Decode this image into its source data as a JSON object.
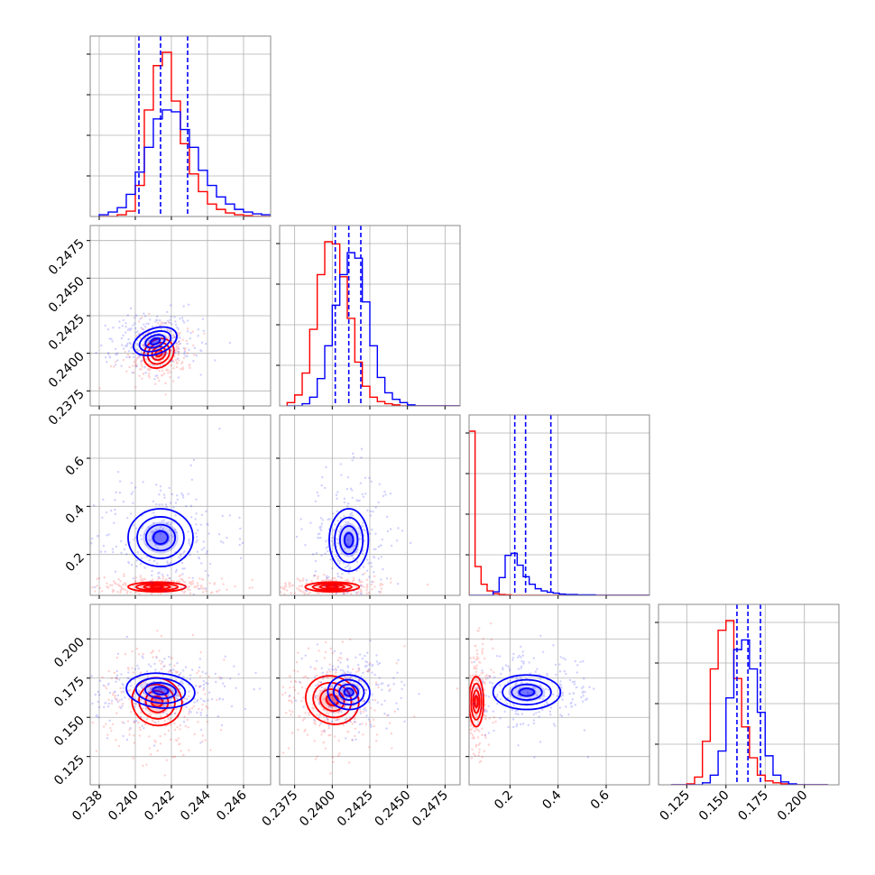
{
  "chart_data": {
    "type": "corner",
    "grid": true,
    "legend": "none",
    "colors": {
      "series_a": "#0000ff",
      "series_b": "#ff0000",
      "grid": "#b0b0b0",
      "frame": "#888888"
    },
    "parameters": [
      {
        "range": [
          0.2375,
          0.2475
        ],
        "xticks": [
          "0.238",
          "0.240",
          "0.242",
          "0.244",
          "0.246"
        ],
        "yticks": []
      },
      {
        "range": [
          0.2365,
          0.2485
        ],
        "xticks": [
          "0.2375",
          "0.2400",
          "0.2425",
          "0.2450",
          "0.2475"
        ],
        "yticks": [
          "0.2375",
          "0.2400",
          "0.2425",
          "0.2450",
          "0.2475"
        ]
      },
      {
        "range": [
          0.03,
          0.78
        ],
        "xticks": [
          "0.2",
          "0.4",
          "0.6"
        ],
        "yticks": [
          "0.2",
          "0.4",
          "0.6"
        ]
      },
      {
        "range": [
          0.107,
          0.222
        ],
        "xticks": [
          "0.125",
          "0.150",
          "0.175",
          "0.200"
        ],
        "yticks": [
          "0.125",
          "0.150",
          "0.175",
          "0.200"
        ]
      }
    ],
    "quantiles_series_a": [
      [
        0.2402,
        0.2414,
        0.2429
      ],
      [
        0.2402,
        0.2411,
        0.2419
      ],
      [
        0.22,
        0.265,
        0.37
      ],
      [
        0.157,
        0.164,
        0.172
      ]
    ],
    "histograms": [
      {
        "edges_start": 0.238,
        "bin_width": 0.0005,
        "series_a": [
          2,
          5,
          10,
          25,
          50,
          78,
          110,
          120,
          118,
          98,
          78,
          52,
          35,
          22,
          14,
          8,
          5,
          3,
          2,
          1,
          0
        ],
        "series_b": [
          0,
          0,
          2,
          6,
          35,
          120,
          170,
          185,
          130,
          82,
          48,
          28,
          14,
          8,
          4,
          2,
          1,
          0,
          0,
          0,
          0
        ]
      },
      {
        "edges_start": 0.237,
        "bin_width": 0.0005,
        "series_a": [
          0,
          0,
          2,
          8,
          25,
          55,
          92,
          120,
          140,
          135,
          95,
          55,
          26,
          12,
          6,
          3,
          1,
          0,
          0,
          0,
          0,
          0,
          0
        ],
        "series_b": [
          3,
          10,
          30,
          70,
          120,
          150,
          148,
          118,
          80,
          40,
          18,
          8,
          4,
          2,
          1,
          0,
          0,
          0,
          0,
          0,
          0,
          0,
          0
        ]
      },
      {
        "edges_start": 0.03,
        "bin_width": 0.025,
        "series_a": [
          0,
          0,
          0,
          0,
          8,
          40,
          90,
          95,
          68,
          42,
          25,
          15,
          10,
          7,
          5,
          3,
          2,
          2,
          1,
          1,
          1,
          0,
          0,
          0,
          0,
          0,
          0,
          0,
          0,
          0
        ],
        "series_b": [
          370,
          65,
          25,
          10,
          4,
          2,
          1,
          0,
          0,
          0,
          0,
          0,
          0,
          0,
          0,
          0,
          0,
          0,
          0,
          0,
          0,
          0,
          0,
          0,
          0,
          0,
          0,
          0,
          0,
          0
        ]
      },
      {
        "edges_start": 0.115,
        "bin_width": 0.005,
        "series_a": [
          0,
          0,
          0,
          0,
          2,
          10,
          35,
          90,
          140,
          150,
          120,
          75,
          30,
          10,
          3,
          1,
          0,
          0,
          0,
          0
        ],
        "series_b": [
          0,
          0,
          1,
          8,
          45,
          120,
          160,
          170,
          110,
          60,
          28,
          10,
          4,
          2,
          1,
          0,
          0,
          0,
          0,
          0
        ]
      }
    ],
    "panels_2d": [
      {
        "row": 1,
        "col": 0,
        "series_a": {
          "center": [
            0.2411,
            0.2408
          ],
          "rx": 0.00125,
          "ry": 0.00085,
          "angle": 20
        },
        "series_b": {
          "center": [
            0.2413,
            0.24
          ],
          "rx": 0.0009,
          "ry": 0.0009,
          "angle": 42
        }
      },
      {
        "row": 2,
        "col": 0,
        "series_a": {
          "center": [
            0.2414,
            0.27
          ],
          "rx": 0.0018,
          "ry": 0.12,
          "angle": 0
        },
        "series_b": {
          "center": [
            0.2412,
            0.065
          ],
          "rx": 0.0016,
          "ry": 0.02,
          "angle": 0
        }
      },
      {
        "row": 2,
        "col": 1,
        "series_a": {
          "center": [
            0.2411,
            0.26
          ],
          "rx": 0.0013,
          "ry": 0.13,
          "angle": 0
        },
        "series_b": {
          "center": [
            0.24,
            0.065
          ],
          "rx": 0.0018,
          "ry": 0.02,
          "angle": 0
        }
      },
      {
        "row": 3,
        "col": 0,
        "series_a": {
          "center": [
            0.2414,
            0.167
          ],
          "rx": 0.0019,
          "ry": 0.011,
          "angle": -5
        },
        "series_b": {
          "center": [
            0.2412,
            0.16
          ],
          "rx": 0.0014,
          "ry": 0.015,
          "angle": -25
        }
      },
      {
        "row": 3,
        "col": 1,
        "series_a": {
          "center": [
            0.2411,
            0.166
          ],
          "rx": 0.0014,
          "ry": 0.011,
          "angle": -5
        },
        "series_b": {
          "center": [
            0.24,
            0.161
          ],
          "rx": 0.0018,
          "ry": 0.015,
          "angle": -25
        }
      },
      {
        "row": 3,
        "col": 2,
        "series_a": {
          "center": [
            0.27,
            0.166
          ],
          "rx": 0.14,
          "ry": 0.011,
          "angle": 0
        },
        "series_b": {
          "center": [
            0.06,
            0.16
          ],
          "rx": 0.03,
          "ry": 0.016,
          "angle": 0
        }
      }
    ]
  }
}
